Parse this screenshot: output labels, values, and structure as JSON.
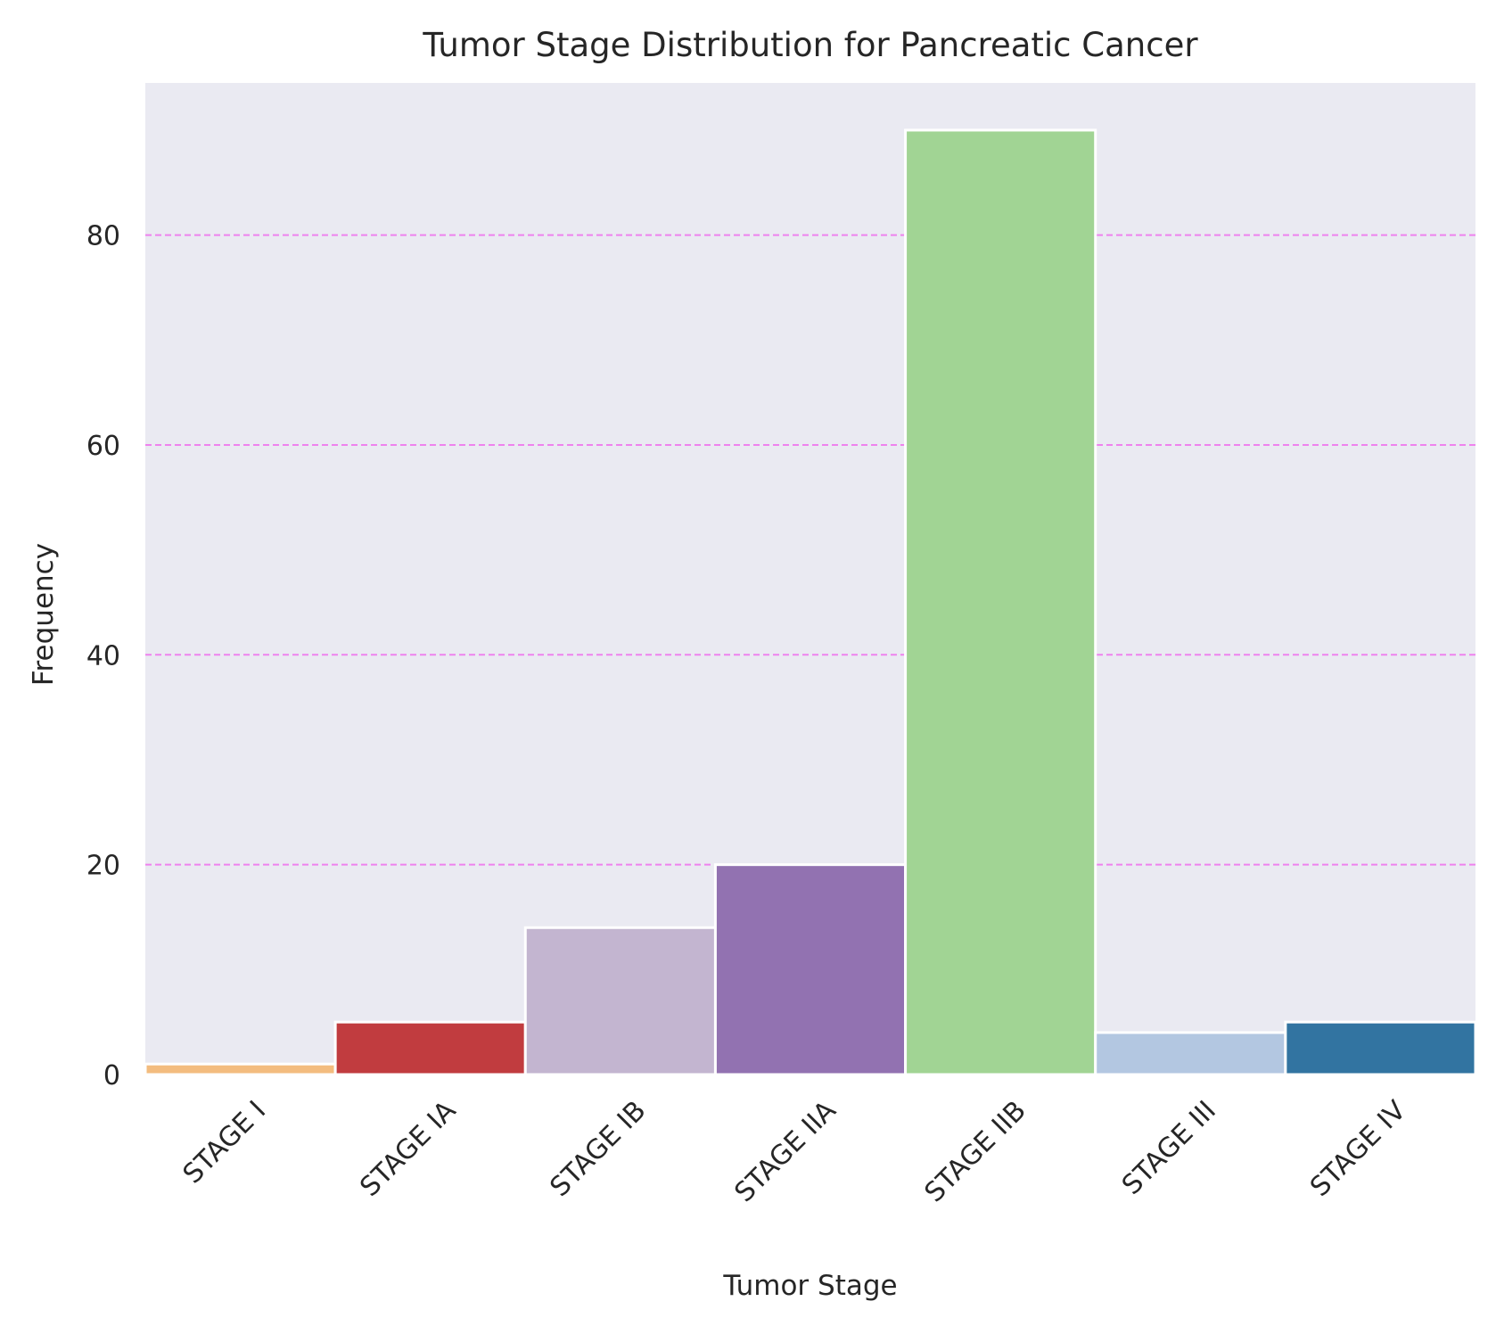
{
  "chart_data": {
    "type": "bar",
    "title": "Tumor Stage Distribution for Pancreatic Cancer",
    "xlabel": "Tumor Stage",
    "ylabel": "Frequency",
    "categories": [
      "STAGE I",
      "STAGE IA",
      "STAGE IB",
      "STAGE IIA",
      "STAGE IIB",
      "STAGE III",
      "STAGE IV"
    ],
    "values": [
      1,
      5,
      14,
      20,
      90,
      4,
      5
    ],
    "colors": [
      "#f3bc7f",
      "#c13c3f",
      "#c3b5d0",
      "#9272b1",
      "#a1d494",
      "#b3c7e1",
      "#3274a1"
    ],
    "ylim": [
      0,
      94.5
    ],
    "yticks": [
      0,
      20,
      40,
      60,
      80
    ],
    "grid": {
      "axis": "y",
      "style": "dashed",
      "color": "#ee82ee"
    },
    "background_color": "#eaeaf2",
    "bar_edge_color": "#ffffff",
    "tick_label_rotation_deg": 45
  }
}
